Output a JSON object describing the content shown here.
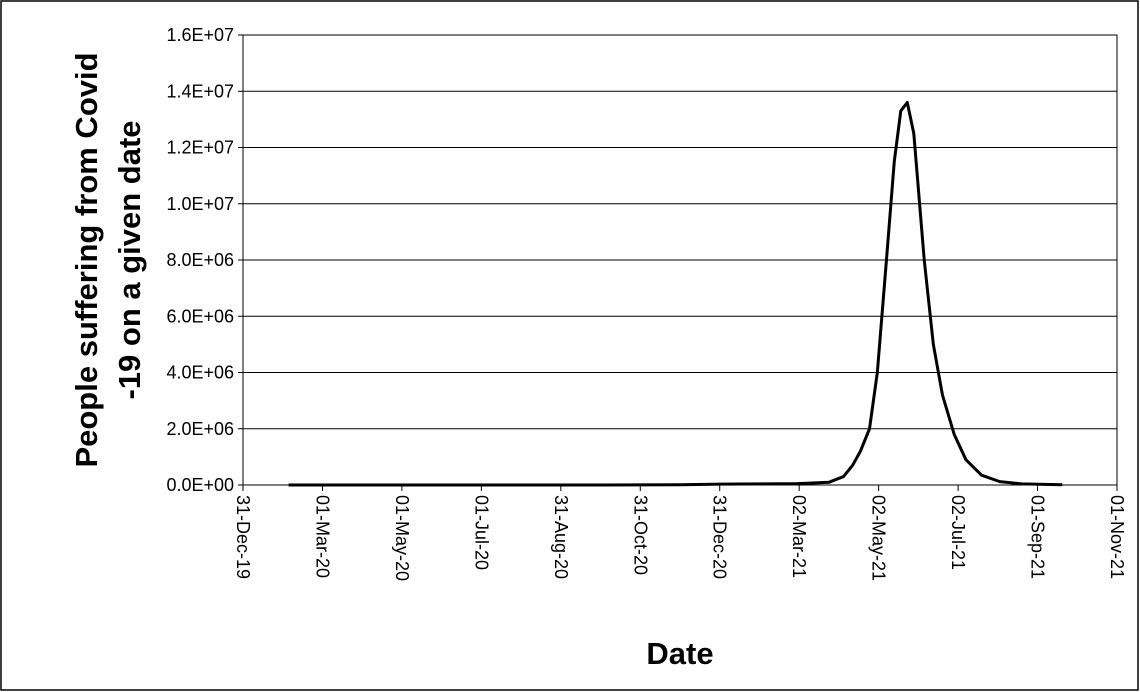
{
  "chart_data": {
    "type": "line",
    "ylabel": [
      "People suffering from Covid",
      "-19 on a given date"
    ],
    "xlabel": "Date",
    "x": [
      "2020-02-04",
      "2020-04-01",
      "2020-06-01",
      "2020-08-01",
      "2020-10-01",
      "2020-12-01",
      "2021-01-01",
      "2021-02-01",
      "2021-03-01",
      "2021-03-25",
      "2021-04-05",
      "2021-04-12",
      "2021-04-18",
      "2021-04-25",
      "2021-05-01",
      "2021-05-08",
      "2021-05-14",
      "2021-05-19",
      "2021-05-24",
      "2021-05-29",
      "2021-06-06",
      "2021-06-13",
      "2021-06-20",
      "2021-06-29",
      "2021-07-08",
      "2021-07-20",
      "2021-08-03",
      "2021-08-20",
      "2021-09-20"
    ],
    "series": [
      {
        "color": "#000000",
        "values": [
          0,
          0,
          0,
          0,
          0,
          10000,
          30000,
          40000,
          50000,
          100000,
          300000,
          700000,
          1200000,
          2000000,
          4000000,
          8000000,
          11500000,
          13300000,
          13600000,
          12500000,
          8000000,
          5000000,
          3200000,
          1800000,
          900000,
          350000,
          120000,
          40000,
          10000
        ]
      }
    ],
    "xlim": [
      "2019-12-31",
      "2021-11-01"
    ],
    "xticks": [
      {
        "value": "2019-12-31",
        "label": "31-Dec-19"
      },
      {
        "value": "2020-03-01",
        "label": "01-Mar-20"
      },
      {
        "value": "2020-05-01",
        "label": "01-May-20"
      },
      {
        "value": "2020-07-01",
        "label": "01-Jul-20"
      },
      {
        "value": "2020-08-31",
        "label": "31-Aug-20"
      },
      {
        "value": "2020-10-31",
        "label": "31-Oct-20"
      },
      {
        "value": "2020-12-31",
        "label": "31-Dec-20"
      },
      {
        "value": "2021-03-02",
        "label": "02-Mar-21"
      },
      {
        "value": "2021-05-02",
        "label": "02-May-21"
      },
      {
        "value": "2021-07-02",
        "label": "02-Jul-21"
      },
      {
        "value": "2021-09-01",
        "label": "01-Sep-21"
      },
      {
        "value": "2021-11-01",
        "label": "01-Nov-21"
      }
    ],
    "ylim": [
      0,
      16000000
    ],
    "yticks": [
      {
        "value": 0,
        "label": "0.0E+00"
      },
      {
        "value": 2000000,
        "label": "2.0E+06"
      },
      {
        "value": 4000000,
        "label": "4.0E+06"
      },
      {
        "value": 6000000,
        "label": "6.0E+06"
      },
      {
        "value": 8000000,
        "label": "8.0E+06"
      },
      {
        "value": 10000000,
        "label": "1.0E+07"
      },
      {
        "value": 12000000,
        "label": "1.2E+07"
      },
      {
        "value": 14000000,
        "label": "1.4E+07"
      },
      {
        "value": 16000000,
        "label": "1.6E+07"
      }
    ],
    "grid": true
  }
}
